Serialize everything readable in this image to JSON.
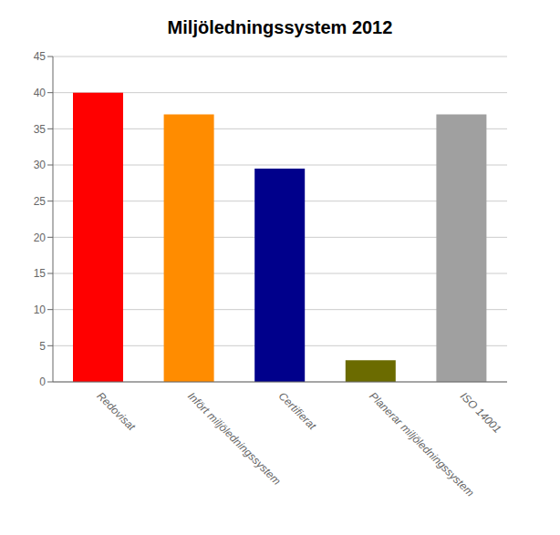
{
  "chart_data": {
    "type": "bar",
    "title": "Miljöledningssystem 2012",
    "categories": [
      "Redovisat",
      "Infört miljöledningssystem",
      "Certifierat",
      "Planerar miljöledningssystem",
      "ISO 14001"
    ],
    "values": [
      40,
      37,
      29.5,
      3,
      37
    ],
    "colors": [
      "#ff0000",
      "#ff8c00",
      "#00008b",
      "#6b6b00",
      "#a0a0a0"
    ],
    "ylim": [
      0,
      45
    ],
    "yticks": [
      0,
      5,
      10,
      15,
      20,
      25,
      30,
      35,
      40,
      45
    ],
    "grid": true
  }
}
